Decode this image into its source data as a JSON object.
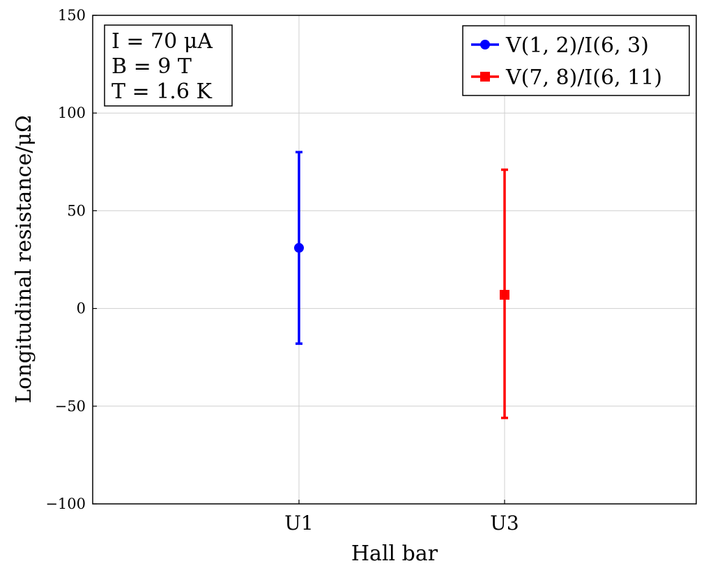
{
  "chart_data": {
    "type": "scatter",
    "xlabel": "Hall bar",
    "ylabel": "Longitudinal resistance/μΩ",
    "categories": [
      "U1",
      "U3"
    ],
    "ylim": [
      -100,
      150
    ],
    "yticks": [
      -100,
      -50,
      0,
      50,
      100,
      150
    ],
    "ytick_labels": [
      "−100",
      "−50",
      "0",
      "50",
      "100",
      "150"
    ],
    "grid": true,
    "legend_position": "top-right",
    "annotation": [
      "I = 70 μA",
      "B = 9 T",
      "T = 1.6 K"
    ],
    "series": [
      {
        "name": "V(1, 2)/I(6, 3)",
        "color": "#0000ff",
        "marker": "circle",
        "points": [
          {
            "x": "U1",
            "y": 31,
            "err_low": -18,
            "err_high": 80
          }
        ]
      },
      {
        "name": "V(7, 8)/I(6, 11)",
        "color": "#ff0000",
        "marker": "square",
        "points": [
          {
            "x": "U3",
            "y": 7,
            "err_low": -56,
            "err_high": 71
          }
        ]
      }
    ]
  }
}
